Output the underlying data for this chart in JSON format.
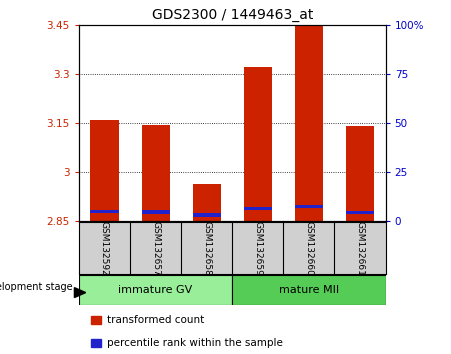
{
  "title": "GDS2300 / 1449463_at",
  "samples": [
    "GSM132592",
    "GSM132657",
    "GSM132658",
    "GSM132659",
    "GSM132660",
    "GSM132661"
  ],
  "ylim_left": [
    2.85,
    3.45
  ],
  "yticks_left": [
    2.85,
    3.0,
    3.15,
    3.3,
    3.45
  ],
  "ytick_labels_left": [
    "2.85",
    "3",
    "3.15",
    "3.3",
    "3.45"
  ],
  "ylim_right": [
    0,
    100
  ],
  "yticks_right": [
    0,
    25,
    50,
    75,
    100
  ],
  "ytick_labels_right": [
    "0",
    "25",
    "50",
    "75",
    "100%"
  ],
  "bar_bottom": 2.85,
  "bar_values": [
    3.16,
    3.145,
    2.965,
    3.32,
    3.45,
    3.14
  ],
  "blue_bottoms": [
    2.874,
    2.872,
    2.863,
    2.884,
    2.89,
    2.871
  ],
  "blue_heights": [
    0.011,
    0.011,
    0.011,
    0.011,
    0.011,
    0.011
  ],
  "bar_color": "#CC2200",
  "blue_color": "#2222CC",
  "bar_width": 0.55,
  "legend_labels": [
    "transformed count",
    "percentile rank within the sample"
  ],
  "legend_colors": [
    "#CC2200",
    "#2222CC"
  ],
  "dev_stage_label": "development stage",
  "group_info": [
    {
      "label": "immature GV",
      "start": 0,
      "end": 3,
      "color": "#99EE99"
    },
    {
      "label": "mature MII",
      "start": 3,
      "end": 6,
      "color": "#55CC55"
    }
  ],
  "left_tick_color": "#CC2200",
  "right_tick_color": "#0000CC",
  "bg_xtick": "#d0d0d0",
  "title_fontsize": 10,
  "tick_fontsize": 7.5,
  "sample_fontsize": 6.5,
  "group_fontsize": 8,
  "legend_fontsize": 7.5
}
